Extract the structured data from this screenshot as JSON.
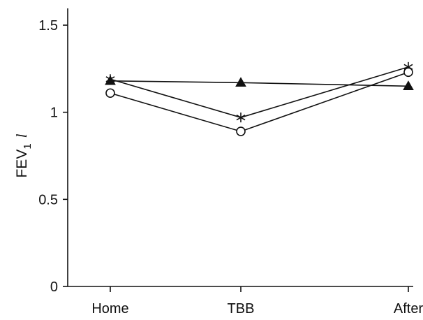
{
  "chart_data": {
    "type": "line",
    "title": "",
    "xlabel": "",
    "ylabel": {
      "text": "FEV",
      "subscript": "1",
      "unit": "l"
    },
    "categories": [
      "Home",
      "TBB",
      "After"
    ],
    "ylim": [
      0,
      1.5
    ],
    "yticks": [
      "0",
      "0.5",
      "1",
      "1.5"
    ],
    "grid": false,
    "legend": "none",
    "series": [
      {
        "marker": "triangle-filled",
        "values": [
          1.18,
          1.17,
          1.15
        ]
      },
      {
        "marker": "asterisk",
        "values": [
          1.19,
          0.97,
          1.26
        ]
      },
      {
        "marker": "circle-open",
        "values": [
          1.11,
          0.89,
          1.23
        ]
      }
    ],
    "colors": {
      "ink": "#111111",
      "background": "#ffffff"
    }
  }
}
